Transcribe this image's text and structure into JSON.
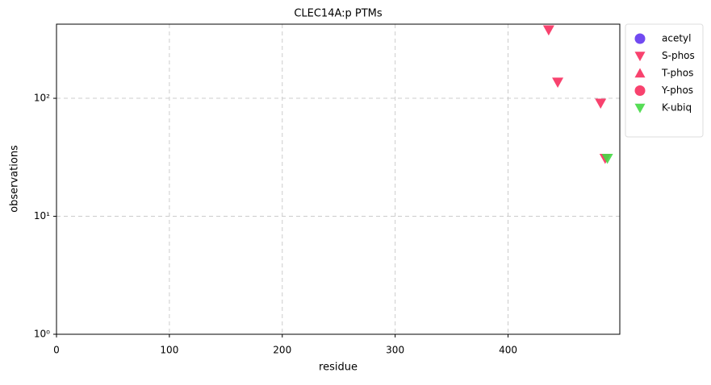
{
  "chart_data": {
    "type": "scatter",
    "title": "CLEC14A:p PTMs",
    "x_label": "residue",
    "y_label": "observations",
    "xlim": [
      0,
      499
    ],
    "xticks": [
      0,
      100,
      200,
      300,
      400
    ],
    "ylim": [
      1,
      425
    ],
    "yscale": "log",
    "yticks": [
      {
        "value": 1,
        "label": "10⁰"
      },
      {
        "value": 10,
        "label": "10¹"
      },
      {
        "value": 100,
        "label": "10²"
      }
    ],
    "grid": true,
    "legend": "outside upper right",
    "series": [
      {
        "name": "acetyl",
        "color": "#6236f0",
        "marker": "circle",
        "x": [],
        "values": []
      },
      {
        "name": "S-phos",
        "color": "#f72d5e",
        "marker": "triangle-down",
        "x": [
          436,
          444,
          482,
          486
        ],
        "values": [
          380,
          137,
          91,
          31
        ]
      },
      {
        "name": "T-phos",
        "color": "#f72d5e",
        "marker": "triangle-up",
        "x": [],
        "values": []
      },
      {
        "name": "Y-phos",
        "color": "#f72d5e",
        "marker": "circle",
        "x": [],
        "values": []
      },
      {
        "name": "K-ubiq",
        "color": "#44d944",
        "marker": "triangle-down",
        "x": [
          488
        ],
        "values": [
          31
        ]
      }
    ]
  }
}
